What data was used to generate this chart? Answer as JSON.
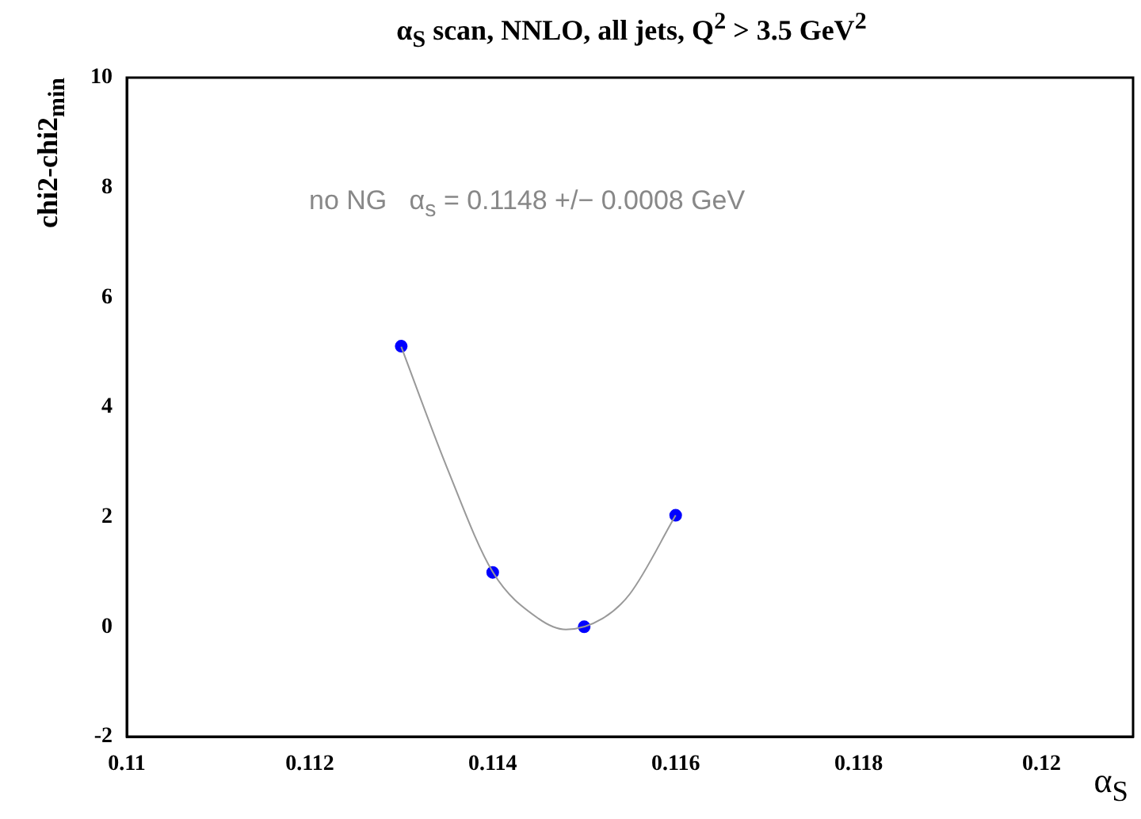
{
  "chart_data": {
    "type": "scatter",
    "title": "α$_{S}$ scan, NNLO, all jets, Q$^{2}$ >  3.5 GeV$^{2}$",
    "xlabel": "α$_{S}$",
    "ylabel": "chi2-chi2$_{min}$",
    "annotations": [
      "no NG   α$_{s}$ = 0.1148 +/− 0.0008 GeV"
    ],
    "xlim": [
      0.11,
      0.121
    ],
    "xticks": [
      0.11,
      0.112,
      0.114,
      0.116,
      0.118,
      0.12
    ],
    "ylim": [
      -2,
      10
    ],
    "yticks": [
      -2,
      0,
      2,
      4,
      6,
      8,
      10
    ],
    "grid": false,
    "legend": false,
    "series": [
      {
        "type": "line",
        "color": "#999999",
        "marker": "none",
        "x": [
          0.113,
          0.1135,
          0.114,
          0.1145,
          0.1148,
          0.1152,
          0.1155,
          0.116
        ],
        "values": [
          5.1,
          2.9,
          1.0,
          0.15,
          -0.05,
          0.15,
          0.6,
          2.03
        ]
      },
      {
        "type": "scatter",
        "color": "#0000ff",
        "marker": "circle",
        "x": [
          0.113,
          0.114,
          0.115,
          0.116
        ],
        "values": [
          5.11,
          0.99,
          0.0,
          2.03
        ]
      }
    ]
  }
}
